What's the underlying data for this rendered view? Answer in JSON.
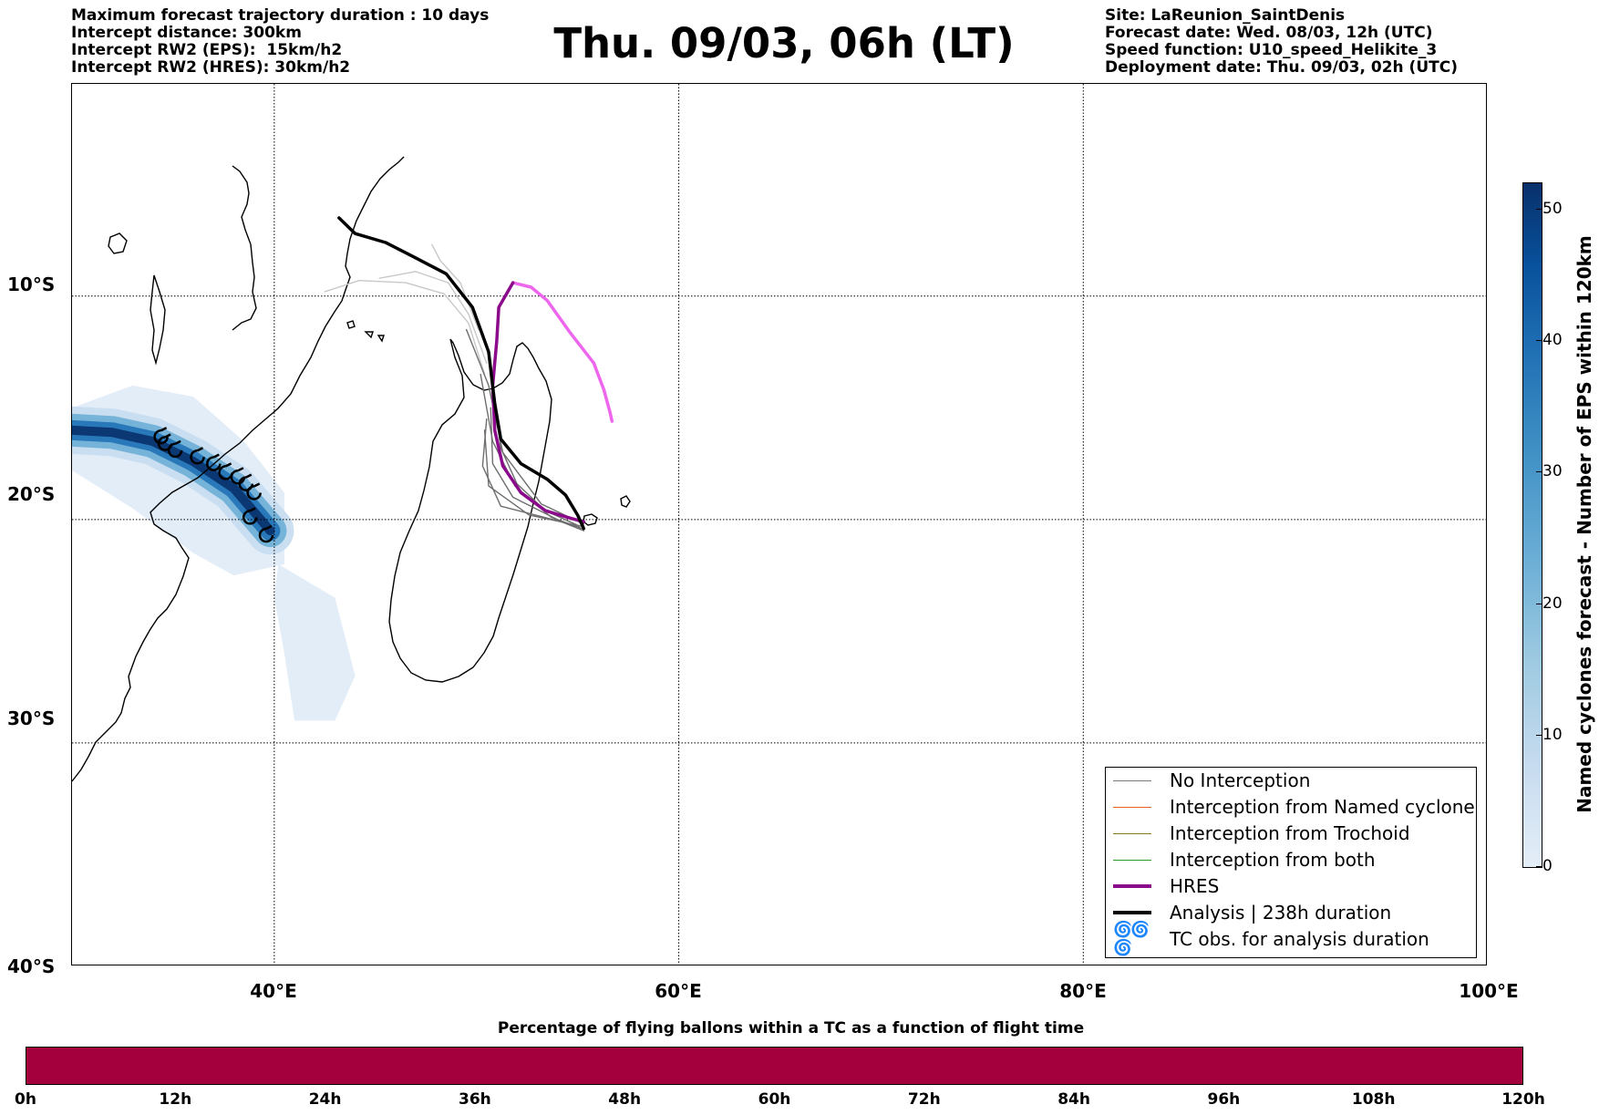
{
  "header": {
    "left_lines": [
      "Maximum forecast trajectory duration : 10 days",
      "Intercept distance: 300km",
      "Intercept RW2 (EPS):  15km/h2",
      "Intercept RW2 (HRES): 30km/h2"
    ],
    "title": "Thu. 09/03, 06h (LT)",
    "right_lines": [
      "Site: LaReunion_SaintDenis",
      "Forecast date: Wed. 08/03, 12h (UTC)",
      "Speed function: U10_speed_Helikite_3",
      "Deployment date: Thu. 09/03, 02h (UTC)"
    ]
  },
  "map": {
    "lat_labels": [
      "10°S",
      "20°S",
      "30°S",
      "40°S"
    ],
    "lon_labels": [
      "40°E",
      "60°E",
      "80°E",
      "100°E"
    ],
    "grid": true,
    "extent": {
      "lon": [
        30,
        100
      ],
      "lat": [
        -40,
        -0.5
      ]
    }
  },
  "legend": {
    "items": [
      {
        "label": "No Interception",
        "color": "#7a7a7a"
      },
      {
        "label": "Interception from Named cyclone",
        "color": "#e8601c"
      },
      {
        "label": "Interception from Trochoid",
        "color": "#8a7a18"
      },
      {
        "label": "Interception from both",
        "color": "#2a9a2a"
      },
      {
        "label": "HRES",
        "color": "#8b0a8b"
      },
      {
        "label": "Analysis | 238h duration",
        "color": "#000000"
      },
      {
        "label": "TC obs. for analysis duration",
        "symbol": "cyclone-symbols"
      }
    ]
  },
  "colorbar": {
    "label": "Named cyclones forecast - Number of EPS within 120km",
    "ticks": [
      "0",
      "10",
      "20",
      "30",
      "40",
      "50"
    ],
    "range": [
      0,
      52
    ]
  },
  "percentage_bar": {
    "title": "Percentage of flying ballons within a TC as a function of flight time",
    "ticks": [
      "0h",
      "12h",
      "24h",
      "36h",
      "48h",
      "60h",
      "72h",
      "84h",
      "96h",
      "108h",
      "120h"
    ],
    "color": "#a3003d"
  },
  "tracks": {
    "analysis": [
      [
        43.2,
        -6.5
      ],
      [
        44,
        -7.2
      ],
      [
        45.5,
        -7.6
      ],
      [
        46.8,
        -8.2
      ],
      [
        48.5,
        -9
      ],
      [
        49.8,
        -10.5
      ],
      [
        50.6,
        -12.5
      ],
      [
        50.9,
        -14.8
      ],
      [
        51.2,
        -16.4
      ],
      [
        52.2,
        -17.5
      ],
      [
        53.5,
        -18.2
      ],
      [
        54.4,
        -18.9
      ],
      [
        55,
        -19.8
      ],
      [
        55.3,
        -20.4
      ]
    ],
    "hres": [
      [
        51.8,
        -9.4
      ],
      [
        52.7,
        -9.6
      ],
      [
        53.5,
        -10.2
      ],
      [
        54.6,
        -11.6
      ],
      [
        55.8,
        -13
      ],
      [
        56.3,
        -14.2
      ],
      [
        56.6,
        -15.2
      ],
      [
        56.7,
        -15.6
      ]
    ],
    "hres_dark": [
      [
        51.8,
        -9.4
      ],
      [
        51.1,
        -10.5
      ],
      [
        51.0,
        -12.0
      ],
      [
        50.8,
        -14.0
      ],
      [
        50.9,
        -16.0
      ],
      [
        51.3,
        -17.6
      ],
      [
        52.2,
        -18.8
      ],
      [
        53.4,
        -19.6
      ],
      [
        54.5,
        -19.9
      ],
      [
        55.3,
        -20.1
      ]
    ],
    "eps": [
      [
        [
          50.9,
          -14.5
        ],
        [
          51.2,
          -16.8
        ],
        [
          52.0,
          -18.4
        ],
        [
          53.4,
          -19.6
        ],
        [
          55.1,
          -20.3
        ]
      ],
      [
        [
          50.7,
          -15.0
        ],
        [
          50.8,
          -17.5
        ],
        [
          51.8,
          -19.0
        ],
        [
          54.0,
          -20.0
        ],
        [
          55.2,
          -20.4
        ]
      ],
      [
        [
          50.5,
          -15.5
        ],
        [
          50.3,
          -17.6
        ],
        [
          51.2,
          -19.4
        ],
        [
          54.2,
          -20.1
        ],
        [
          55.3,
          -20.5
        ]
      ],
      [
        [
          50.4,
          -16.0
        ],
        [
          50.6,
          -18.5
        ],
        [
          52.6,
          -19.8
        ],
        [
          55.2,
          -20.3
        ]
      ],
      [
        [
          50.2,
          -13.5
        ],
        [
          50.8,
          -16.5
        ],
        [
          51.9,
          -18.5
        ],
        [
          53.7,
          -19.9
        ],
        [
          55.2,
          -20.4
        ]
      ],
      [
        [
          49.5,
          -11.5
        ],
        [
          50.6,
          -14.0
        ],
        [
          51.3,
          -17.0
        ],
        [
          53.2,
          -19.3
        ],
        [
          55.3,
          -20.2
        ]
      ]
    ],
    "eps_light": [
      [
        [
          42.5,
          -9.8
        ],
        [
          44.2,
          -9.3
        ],
        [
          46.5,
          -9.4
        ],
        [
          48.4,
          -9.9
        ],
        [
          49.6,
          -11.2
        ],
        [
          50.4,
          -13.5
        ]
      ],
      [
        [
          45.2,
          -9.2
        ],
        [
          47.0,
          -8.9
        ],
        [
          48.6,
          -9.4
        ],
        [
          49.6,
          -10.8
        ],
        [
          50.5,
          -13.0
        ]
      ],
      [
        [
          47.8,
          -7.7
        ],
        [
          48.2,
          -8.4
        ],
        [
          49.2,
          -9.4
        ],
        [
          50.1,
          -11.5
        ]
      ]
    ],
    "tc_obs": [
      [
        34.4,
        -16.3
      ],
      [
        34.6,
        -16.6
      ],
      [
        35.1,
        -16.9
      ],
      [
        36.2,
        -17.2
      ],
      [
        37.0,
        -17.5
      ],
      [
        37.6,
        -17.9
      ],
      [
        38.2,
        -18.1
      ],
      [
        38.6,
        -18.4
      ],
      [
        39.0,
        -18.8
      ],
      [
        38.8,
        -19.9
      ],
      [
        39.6,
        -20.7
      ]
    ]
  }
}
